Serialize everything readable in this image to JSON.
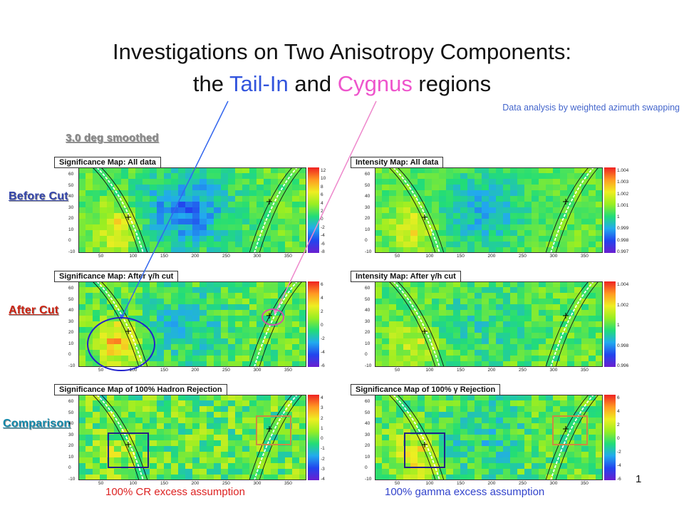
{
  "title": {
    "line1": "Investigations on Two Anisotropy Components:",
    "line2_pre": "the ",
    "line2_tail": "Tail-In",
    "line2_mid": " and ",
    "line2_cygnus": "Cygnus",
    "line2_post": " regions"
  },
  "note": "Data analysis by weighted azimuth swapping",
  "labels": {
    "smoothed": "3.0 deg smoothed",
    "before_cut": "Before Cut",
    "after_cut": "After Cut",
    "comparison": "Comparison"
  },
  "panels": [
    {
      "title": "Significance Map: All data",
      "cbar_ticks": [
        "12",
        "10",
        "8",
        "6",
        "4",
        "2",
        "0",
        "-2",
        "-4",
        "-6",
        "-8"
      ]
    },
    {
      "title": "Intensity Map: All data",
      "cbar_ticks": [
        "1.004",
        "1.003",
        "1.002",
        "1.001",
        "1",
        "0.999",
        "0.998",
        "0.997"
      ]
    },
    {
      "title": "Significance Map: After γ/h cut",
      "cbar_ticks": [
        "6",
        "4",
        "2",
        "0",
        "-2",
        "-4",
        "-6"
      ]
    },
    {
      "title": "Intensity Map: After γ/h cut",
      "cbar_ticks": [
        "1.004",
        "1.002",
        "1",
        "0.998",
        "0.996"
      ]
    },
    {
      "title": "Significance Map of 100% Hadron Rejection",
      "cbar_ticks": [
        "4",
        "3",
        "2",
        "1",
        "0",
        "-1",
        "-2",
        "-3",
        "-4"
      ]
    },
    {
      "title": "Significance Map of 100% γ Rejection",
      "cbar_ticks": [
        "6",
        "4",
        "2",
        "0",
        "-2",
        "-4",
        "-6"
      ]
    }
  ],
  "axes": {
    "x_ticks": [
      "50",
      "100",
      "150",
      "200",
      "250",
      "300",
      "350"
    ],
    "y_ticks": [
      "60",
      "50",
      "40",
      "30",
      "20",
      "10",
      "0",
      "-10"
    ]
  },
  "bottom": {
    "left": "100% CR excess assumption",
    "right": "100% gamma excess assumption"
  },
  "page_number": "1",
  "colors": {
    "tail": "#3355dd",
    "cygnus": "#ee55cc",
    "bottom_left": "#dd2222",
    "bottom_right": "#3344cc"
  }
}
